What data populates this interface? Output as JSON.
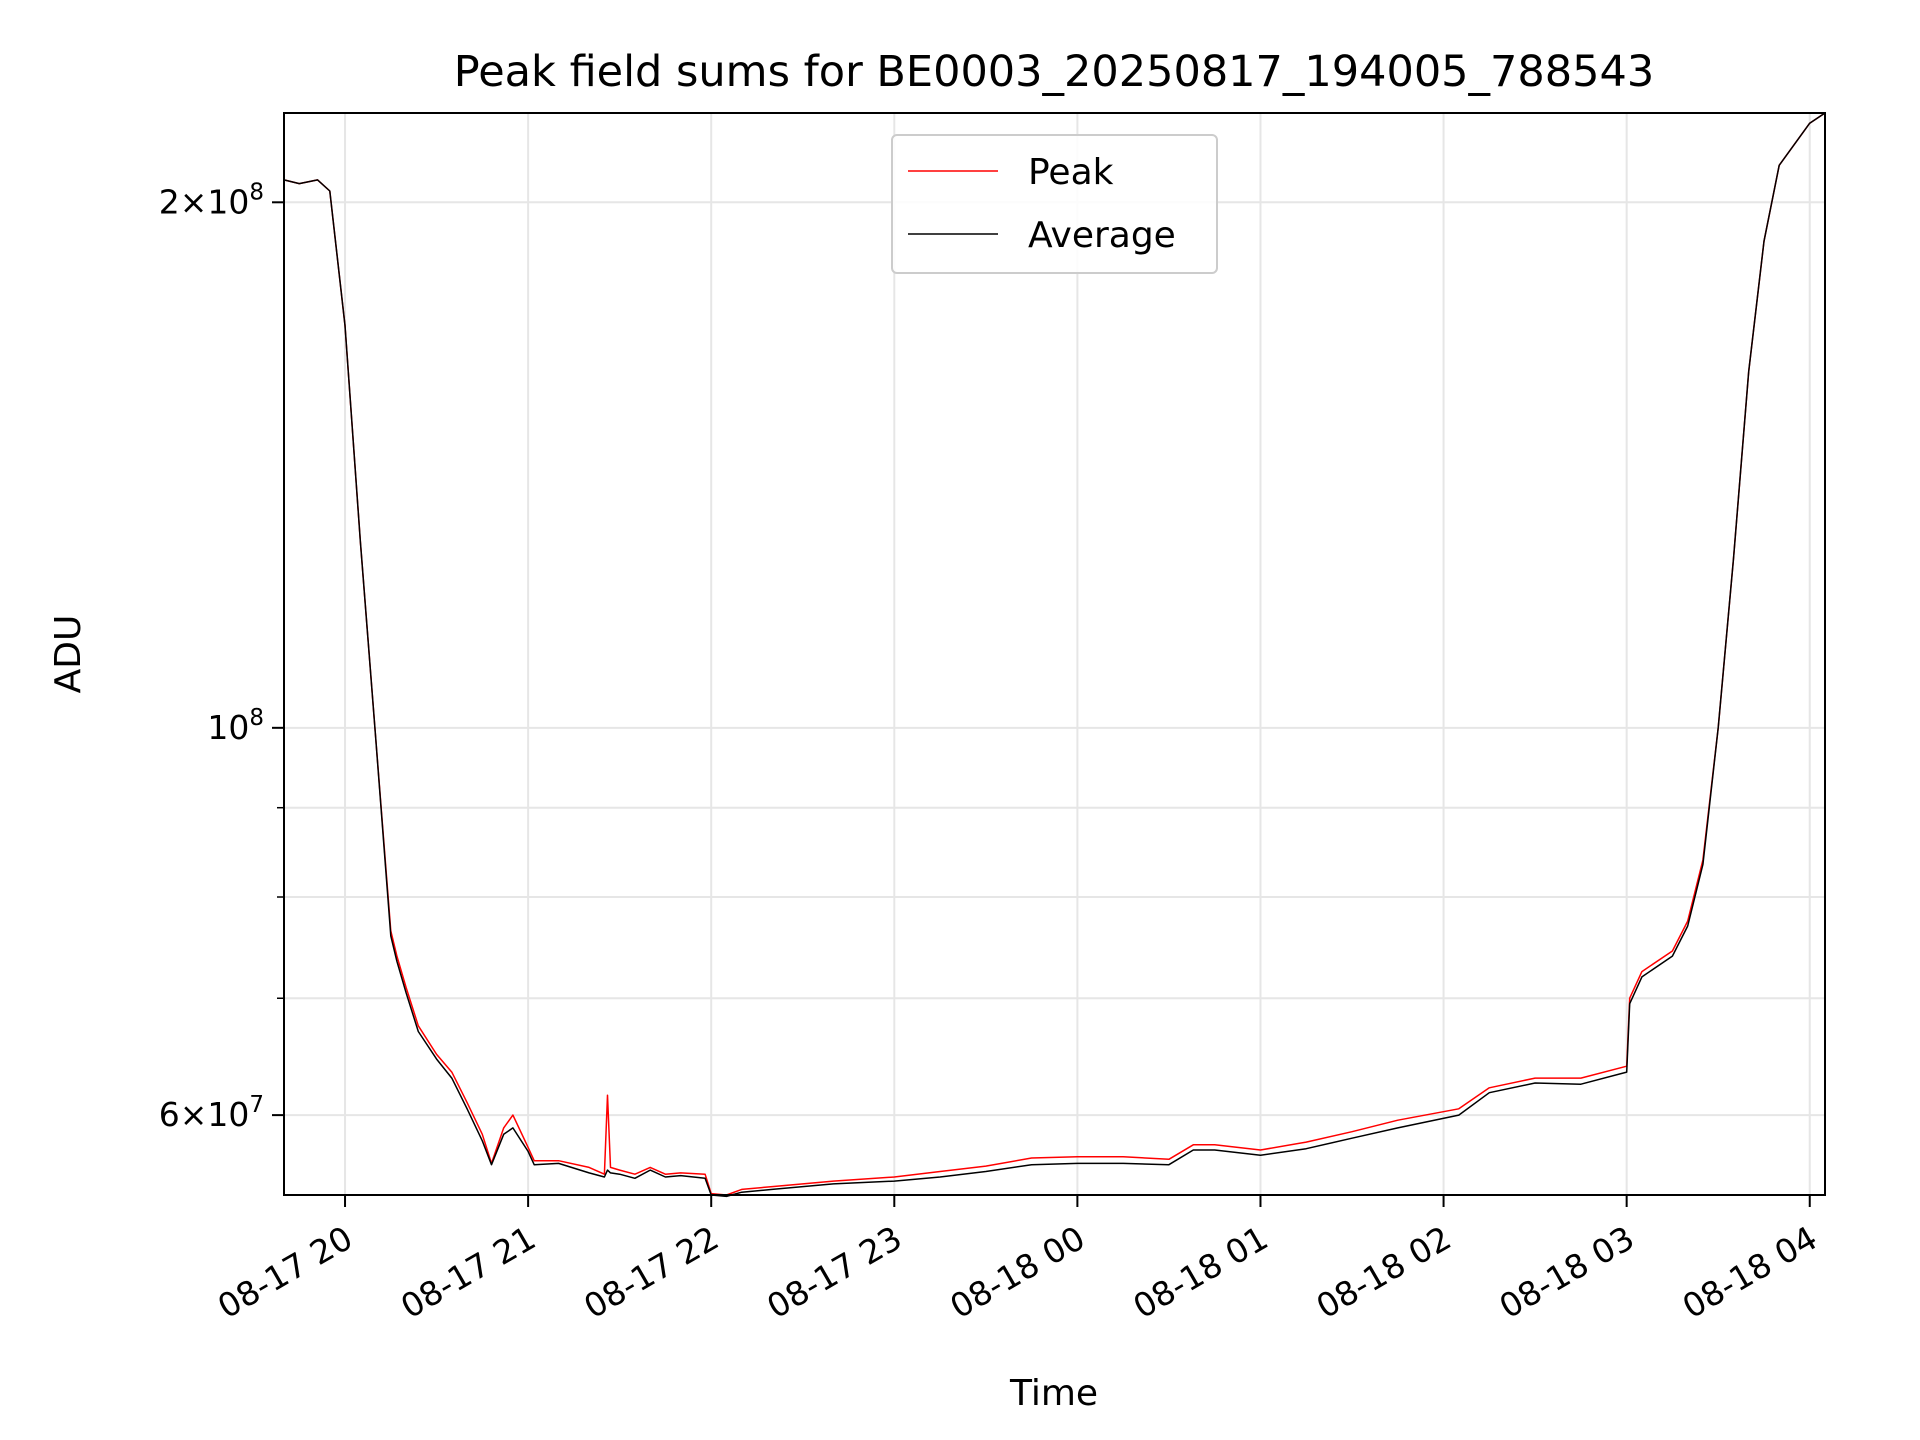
{
  "chart_data": {
    "type": "line",
    "title": "Peak field sums for BE0003_20250817_194005_788543",
    "xlabel": "Time",
    "ylabel": "ADU",
    "yscale": "log",
    "ylim": [
      54000000,
      225000000
    ],
    "xlim": [
      "2025-08-17 19:40",
      "2025-08-18 04:05"
    ],
    "grid": true,
    "legend_position": "top-center",
    "x_ticks": [
      {
        "value": "2025-08-17 20:00",
        "label": "08-17 20"
      },
      {
        "value": "2025-08-17 21:00",
        "label": "08-17 21"
      },
      {
        "value": "2025-08-17 22:00",
        "label": "08-17 22"
      },
      {
        "value": "2025-08-17 23:00",
        "label": "08-17 23"
      },
      {
        "value": "2025-08-18 00:00",
        "label": "08-18 00"
      },
      {
        "value": "2025-08-18 01:00",
        "label": "08-18 01"
      },
      {
        "value": "2025-08-18 02:00",
        "label": "08-18 02"
      },
      {
        "value": "2025-08-18 03:00",
        "label": "08-18 03"
      },
      {
        "value": "2025-08-18 04:00",
        "label": "08-18 04"
      }
    ],
    "y_major_ticks": [
      {
        "value": 60000000,
        "base": "6",
        "exp": "7"
      },
      {
        "value": 100000000,
        "base": "",
        "exp": "8"
      },
      {
        "value": 200000000,
        "base": "2",
        "exp": "8"
      }
    ],
    "y_minor_ticks": [
      70000000,
      80000000,
      90000000
    ],
    "series": [
      {
        "name": "Peak",
        "color": "#ff0000",
        "x": [
          "2025-08-17 19:40",
          "2025-08-17 19:45",
          "2025-08-17 19:51",
          "2025-08-17 19:55",
          "2025-08-17 20:00",
          "2025-08-17 20:05",
          "2025-08-17 20:10",
          "2025-08-17 20:15",
          "2025-08-17 20:17",
          "2025-08-17 20:20",
          "2025-08-17 20:24",
          "2025-08-17 20:30",
          "2025-08-17 20:35",
          "2025-08-17 20:40",
          "2025-08-17 20:45",
          "2025-08-17 20:48",
          "2025-08-17 20:52",
          "2025-08-17 20:55",
          "2025-08-17 21:00",
          "2025-08-17 21:02",
          "2025-08-17 21:10",
          "2025-08-17 21:20",
          "2025-08-17 21:25",
          "2025-08-17 21:26",
          "2025-08-17 21:27",
          "2025-08-17 21:30",
          "2025-08-17 21:35",
          "2025-08-17 21:40",
          "2025-08-17 21:45",
          "2025-08-17 21:50",
          "2025-08-17 21:58",
          "2025-08-17 22:00",
          "2025-08-17 22:05",
          "2025-08-17 22:10",
          "2025-08-17 22:20",
          "2025-08-17 22:30",
          "2025-08-17 22:40",
          "2025-08-17 23:00",
          "2025-08-17 23:15",
          "2025-08-17 23:30",
          "2025-08-17 23:45",
          "2025-08-18 00:00",
          "2025-08-18 00:15",
          "2025-08-18 00:30",
          "2025-08-18 00:38",
          "2025-08-18 00:45",
          "2025-08-18 01:00",
          "2025-08-18 01:15",
          "2025-08-18 01:30",
          "2025-08-18 01:45",
          "2025-08-18 02:05",
          "2025-08-18 02:15",
          "2025-08-18 02:30",
          "2025-08-18 02:45",
          "2025-08-18 03:00",
          "2025-08-18 03:01",
          "2025-08-18 03:05",
          "2025-08-18 03:15",
          "2025-08-18 03:20",
          "2025-08-18 03:25",
          "2025-08-18 03:30",
          "2025-08-18 03:35",
          "2025-08-18 03:40",
          "2025-08-18 03:45",
          "2025-08-18 03:50",
          "2025-08-18 04:00",
          "2025-08-18 04:05"
        ],
        "y": [
          206000000,
          205000000,
          206000000,
          203000000,
          170000000,
          128000000,
          99000000,
          76500000,
          74000000,
          71000000,
          67500000,
          65000000,
          63500000,
          61000000,
          58500000,
          56300000,
          59000000,
          60000000,
          57500000,
          56500000,
          56500000,
          56000000,
          55500000,
          61600000,
          56000000,
          55800000,
          55500000,
          56000000,
          55500000,
          55600000,
          55500000,
          54100000,
          54000000,
          54400000,
          54600000,
          54800000,
          55000000,
          55300000,
          55700000,
          56100000,
          56700000,
          56800000,
          56800000,
          56600000,
          57700000,
          57700000,
          57300000,
          57900000,
          58700000,
          59600000,
          60500000,
          62200000,
          63000000,
          63000000,
          64000000,
          70000000,
          72500000,
          74500000,
          77500000,
          84000000,
          100000000,
          125000000,
          160000000,
          190000000,
          210000000,
          222000000,
          225000000
        ]
      },
      {
        "name": "Average",
        "color": "#000000",
        "x": [
          "2025-08-17 19:40",
          "2025-08-17 19:45",
          "2025-08-17 19:51",
          "2025-08-17 19:55",
          "2025-08-17 20:00",
          "2025-08-17 20:05",
          "2025-08-17 20:10",
          "2025-08-17 20:15",
          "2025-08-17 20:17",
          "2025-08-17 20:20",
          "2025-08-17 20:24",
          "2025-08-17 20:30",
          "2025-08-17 20:35",
          "2025-08-17 20:40",
          "2025-08-17 20:45",
          "2025-08-17 20:48",
          "2025-08-17 20:52",
          "2025-08-17 20:55",
          "2025-08-17 21:00",
          "2025-08-17 21:02",
          "2025-08-17 21:10",
          "2025-08-17 21:20",
          "2025-08-17 21:25",
          "2025-08-17 21:26",
          "2025-08-17 21:27",
          "2025-08-17 21:30",
          "2025-08-17 21:35",
          "2025-08-17 21:40",
          "2025-08-17 21:45",
          "2025-08-17 21:50",
          "2025-08-17 21:58",
          "2025-08-17 22:00",
          "2025-08-17 22:05",
          "2025-08-17 22:10",
          "2025-08-17 22:20",
          "2025-08-17 22:30",
          "2025-08-17 22:40",
          "2025-08-17 23:00",
          "2025-08-17 23:15",
          "2025-08-17 23:30",
          "2025-08-17 23:45",
          "2025-08-18 00:00",
          "2025-08-18 00:15",
          "2025-08-18 00:30",
          "2025-08-18 00:38",
          "2025-08-18 00:45",
          "2025-08-18 01:00",
          "2025-08-18 01:15",
          "2025-08-18 01:30",
          "2025-08-18 01:45",
          "2025-08-18 02:05",
          "2025-08-18 02:15",
          "2025-08-18 02:30",
          "2025-08-18 02:45",
          "2025-08-18 03:00",
          "2025-08-18 03:01",
          "2025-08-18 03:05",
          "2025-08-18 03:15",
          "2025-08-18 03:20",
          "2025-08-18 03:25",
          "2025-08-18 03:30",
          "2025-08-18 03:35",
          "2025-08-18 03:40",
          "2025-08-18 03:45",
          "2025-08-18 03:50",
          "2025-08-18 04:00",
          "2025-08-18 04:05"
        ],
        "y": [
          206000000,
          205000000,
          206000000,
          203000000,
          170000000,
          128000000,
          99000000,
          76000000,
          73500000,
          70500000,
          67000000,
          64600000,
          63000000,
          60500000,
          58000000,
          56200000,
          58500000,
          59000000,
          57200000,
          56200000,
          56300000,
          55600000,
          55300000,
          55800000,
          55600000,
          55500000,
          55200000,
          55800000,
          55300000,
          55400000,
          55200000,
          54000000,
          53900000,
          54200000,
          54400000,
          54600000,
          54800000,
          55000000,
          55300000,
          55700000,
          56200000,
          56300000,
          56300000,
          56200000,
          57300000,
          57300000,
          56900000,
          57400000,
          58200000,
          59000000,
          60000000,
          61800000,
          62600000,
          62500000,
          63500000,
          69500000,
          72000000,
          74000000,
          77000000,
          83500000,
          100000000,
          125000000,
          160000000,
          190000000,
          210000000,
          222000000,
          225000000
        ]
      }
    ]
  }
}
